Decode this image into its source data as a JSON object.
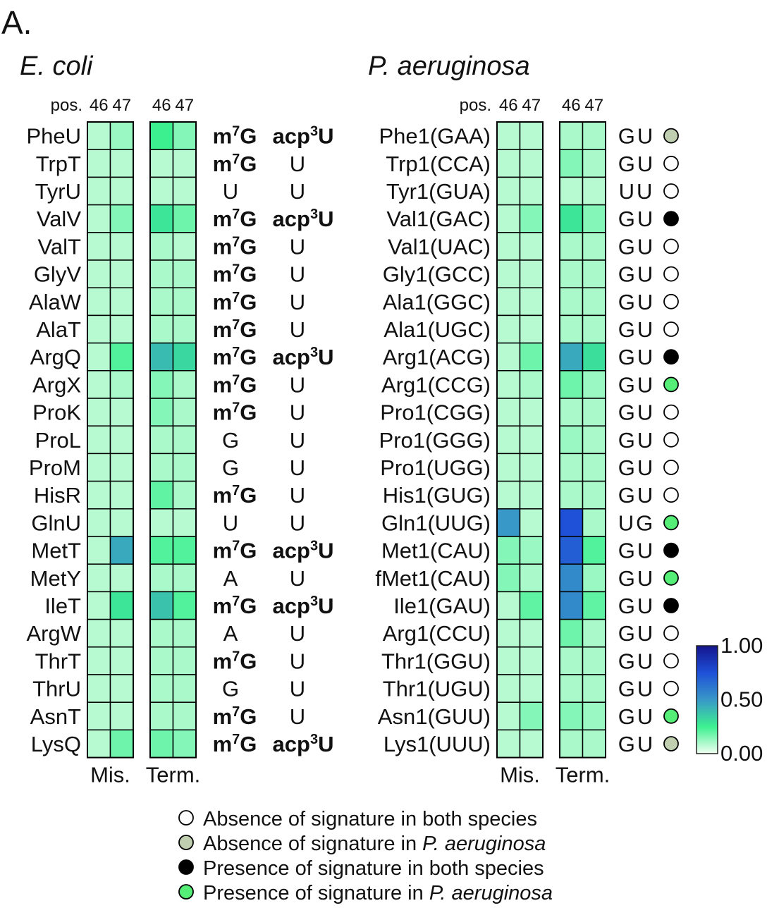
{
  "panel_label": "A.",
  "ecoli": {
    "species": "E. coli",
    "pos_label": "pos.",
    "positions": [
      "46",
      "47"
    ],
    "panel_labels": [
      "Mis.",
      "Term."
    ],
    "rows": [
      {
        "name": "PheU",
        "mis": [
          0.08,
          0.12
        ],
        "term": [
          0.25,
          0.15
        ],
        "mod46": [
          "m",
          "7",
          "G"
        ],
        "mod47": [
          "acp",
          "3",
          "U"
        ]
      },
      {
        "name": "TrpT",
        "mis": [
          0.08,
          0.08
        ],
        "term": [
          0.08,
          0.08
        ],
        "mod46": [
          "m",
          "7",
          "G"
        ],
        "mod47": [
          "",
          "",
          "U"
        ]
      },
      {
        "name": "TyrU",
        "mis": [
          0.08,
          0.08
        ],
        "term": [
          0.08,
          0.08
        ],
        "mod46": [
          "",
          "",
          "U"
        ],
        "mod47": [
          "",
          "",
          "U"
        ]
      },
      {
        "name": "ValV",
        "mis": [
          0.08,
          0.15
        ],
        "term": [
          0.28,
          0.18
        ],
        "mod46": [
          "m",
          "7",
          "G"
        ],
        "mod47": [
          "acp",
          "3",
          "U"
        ]
      },
      {
        "name": "ValT",
        "mis": [
          0.08,
          0.08
        ],
        "term": [
          0.1,
          0.08
        ],
        "mod46": [
          "m",
          "7",
          "G"
        ],
        "mod47": [
          "",
          "",
          "U"
        ]
      },
      {
        "name": "GlyV",
        "mis": [
          0.08,
          0.08
        ],
        "term": [
          0.1,
          0.1
        ],
        "mod46": [
          "m",
          "7",
          "G"
        ],
        "mod47": [
          "",
          "",
          "U"
        ]
      },
      {
        "name": "AlaW",
        "mis": [
          0.08,
          0.08
        ],
        "term": [
          0.1,
          0.1
        ],
        "mod46": [
          "m",
          "7",
          "G"
        ],
        "mod47": [
          "",
          "",
          "U"
        ]
      },
      {
        "name": "AlaT",
        "mis": [
          0.08,
          0.08
        ],
        "term": [
          0.1,
          0.1
        ],
        "mod46": [
          "m",
          "7",
          "G"
        ],
        "mod47": [
          "",
          "",
          "U"
        ]
      },
      {
        "name": "ArgQ",
        "mis": [
          0.08,
          0.22
        ],
        "term": [
          0.4,
          0.32
        ],
        "mod46": [
          "m",
          "7",
          "G"
        ],
        "mod47": [
          "acp",
          "3",
          "U"
        ]
      },
      {
        "name": "ArgX",
        "mis": [
          0.08,
          0.1
        ],
        "term": [
          0.15,
          0.1
        ],
        "mod46": [
          "m",
          "7",
          "G"
        ],
        "mod47": [
          "",
          "",
          "U"
        ]
      },
      {
        "name": "ProK",
        "mis": [
          0.08,
          0.08
        ],
        "term": [
          0.15,
          0.1
        ],
        "mod46": [
          "m",
          "7",
          "G"
        ],
        "mod47": [
          "",
          "",
          "U"
        ]
      },
      {
        "name": "ProL",
        "mis": [
          0.08,
          0.08
        ],
        "term": [
          0.1,
          0.1
        ],
        "mod46": [
          "",
          "",
          "G"
        ],
        "mod47": [
          "",
          "",
          "U"
        ]
      },
      {
        "name": "ProM",
        "mis": [
          0.08,
          0.08
        ],
        "term": [
          0.1,
          0.1
        ],
        "mod46": [
          "",
          "",
          "G"
        ],
        "mod47": [
          "",
          "",
          "U"
        ]
      },
      {
        "name": "HisR",
        "mis": [
          0.08,
          0.08
        ],
        "term": [
          0.2,
          0.1
        ],
        "mod46": [
          "m",
          "7",
          "G"
        ],
        "mod47": [
          "",
          "",
          "U"
        ]
      },
      {
        "name": "GlnU",
        "mis": [
          0.08,
          0.08
        ],
        "term": [
          0.08,
          0.08
        ],
        "mod46": [
          "",
          "",
          "U"
        ],
        "mod47": [
          "",
          "",
          "U"
        ]
      },
      {
        "name": "MetT",
        "mis": [
          0.08,
          0.45
        ],
        "term": [
          0.22,
          0.22
        ],
        "mod46": [
          "m",
          "7",
          "G"
        ],
        "mod47": [
          "acp",
          "3",
          "U"
        ]
      },
      {
        "name": "MetY",
        "mis": [
          0.08,
          0.08
        ],
        "term": [
          0.1,
          0.1
        ],
        "mod46": [
          "",
          "",
          "A"
        ],
        "mod47": [
          "",
          "",
          "U"
        ]
      },
      {
        "name": "IleT",
        "mis": [
          0.08,
          0.28
        ],
        "term": [
          0.38,
          0.22
        ],
        "mod46": [
          "m",
          "7",
          "G"
        ],
        "mod47": [
          "acp",
          "3",
          "U"
        ]
      },
      {
        "name": "ArgW",
        "mis": [
          0.08,
          0.08
        ],
        "term": [
          0.1,
          0.1
        ],
        "mod46": [
          "",
          "",
          "A"
        ],
        "mod47": [
          "",
          "",
          "U"
        ]
      },
      {
        "name": "ThrT",
        "mis": [
          0.08,
          0.08
        ],
        "term": [
          0.1,
          0.1
        ],
        "mod46": [
          "m",
          "7",
          "G"
        ],
        "mod47": [
          "",
          "",
          "U"
        ]
      },
      {
        "name": "ThrU",
        "mis": [
          0.08,
          0.08
        ],
        "term": [
          0.1,
          0.1
        ],
        "mod46": [
          "",
          "",
          "G"
        ],
        "mod47": [
          "",
          "",
          "U"
        ]
      },
      {
        "name": "AsnT",
        "mis": [
          0.08,
          0.08
        ],
        "term": [
          0.1,
          0.1
        ],
        "mod46": [
          "m",
          "7",
          "G"
        ],
        "mod47": [
          "",
          "",
          "U"
        ]
      },
      {
        "name": "LysQ",
        "mis": [
          0.08,
          0.18
        ],
        "term": [
          0.18,
          0.15
        ],
        "mod46": [
          "m",
          "7",
          "G"
        ],
        "mod47": [
          "acp",
          "3",
          "U"
        ]
      }
    ]
  },
  "paeruginosa": {
    "species": "P. aeruginosa",
    "pos_label": "pos.",
    "positions": [
      "46",
      "47"
    ],
    "panel_labels": [
      "Mis.",
      "Term."
    ],
    "rows": [
      {
        "name": "Phe1(GAA)",
        "mis": [
          0.08,
          0.08
        ],
        "term": [
          0.1,
          0.1
        ],
        "nt": "GU",
        "sig": "absent-pa"
      },
      {
        "name": "Trp1(CCA)",
        "mis": [
          0.08,
          0.08
        ],
        "term": [
          0.15,
          0.1
        ],
        "nt": "GU",
        "sig": "absent-both"
      },
      {
        "name": "Tyr1(GUA)",
        "mis": [
          0.08,
          0.08
        ],
        "term": [
          0.08,
          0.08
        ],
        "nt": "UU",
        "sig": "absent-both"
      },
      {
        "name": "Val1(GAC)",
        "mis": [
          0.08,
          0.15
        ],
        "term": [
          0.28,
          0.15
        ],
        "nt": "GU",
        "sig": "present-both"
      },
      {
        "name": "Val1(UAC)",
        "mis": [
          0.08,
          0.08
        ],
        "term": [
          0.1,
          0.1
        ],
        "nt": "GU",
        "sig": "absent-both"
      },
      {
        "name": "Gly1(GCC)",
        "mis": [
          0.08,
          0.08
        ],
        "term": [
          0.1,
          0.1
        ],
        "nt": "GU",
        "sig": "absent-both"
      },
      {
        "name": "Ala1(GGC)",
        "mis": [
          0.08,
          0.08
        ],
        "term": [
          0.1,
          0.1
        ],
        "nt": "GU",
        "sig": "absent-both"
      },
      {
        "name": "Ala1(UGC)",
        "mis": [
          0.08,
          0.08
        ],
        "term": [
          0.1,
          0.1
        ],
        "nt": "GU",
        "sig": "absent-both"
      },
      {
        "name": "Arg1(ACG)",
        "mis": [
          0.08,
          0.18
        ],
        "term": [
          0.45,
          0.3
        ],
        "nt": "GU",
        "sig": "present-both"
      },
      {
        "name": "Arg1(CCG)",
        "mis": [
          0.08,
          0.1
        ],
        "term": [
          0.18,
          0.12
        ],
        "nt": "GU",
        "sig": "present-pa"
      },
      {
        "name": "Pro1(CGG)",
        "mis": [
          0.08,
          0.08
        ],
        "term": [
          0.1,
          0.1
        ],
        "nt": "GU",
        "sig": "absent-both"
      },
      {
        "name": "Pro1(GGG)",
        "mis": [
          0.08,
          0.08
        ],
        "term": [
          0.12,
          0.1
        ],
        "nt": "GU",
        "sig": "absent-both"
      },
      {
        "name": "Pro1(UGG)",
        "mis": [
          0.08,
          0.08
        ],
        "term": [
          0.1,
          0.1
        ],
        "nt": "GU",
        "sig": "absent-both"
      },
      {
        "name": "His1(GUG)",
        "mis": [
          0.08,
          0.08
        ],
        "term": [
          0.1,
          0.1
        ],
        "nt": "GU",
        "sig": "absent-both"
      },
      {
        "name": "Gln1(UUG)",
        "mis": [
          0.5,
          0.08
        ],
        "term": [
          0.75,
          0.1
        ],
        "nt": "UG",
        "sig": "present-pa"
      },
      {
        "name": "Met1(CAU)",
        "mis": [
          0.15,
          0.12
        ],
        "term": [
          0.7,
          0.22
        ],
        "nt": "GU",
        "sig": "present-both"
      },
      {
        "name": "fMet1(CAU)",
        "mis": [
          0.15,
          0.1
        ],
        "term": [
          0.55,
          0.12
        ],
        "nt": "GU",
        "sig": "present-pa"
      },
      {
        "name": "Ile1(GAU)",
        "mis": [
          0.08,
          0.2
        ],
        "term": [
          0.55,
          0.2
        ],
        "nt": "GU",
        "sig": "present-both"
      },
      {
        "name": "Arg1(CCU)",
        "mis": [
          0.08,
          0.08
        ],
        "term": [
          0.18,
          0.1
        ],
        "nt": "GU",
        "sig": "absent-both"
      },
      {
        "name": "Thr1(GGU)",
        "mis": [
          0.08,
          0.08
        ],
        "term": [
          0.1,
          0.1
        ],
        "nt": "GU",
        "sig": "absent-both"
      },
      {
        "name": "Thr1(UGU)",
        "mis": [
          0.08,
          0.08
        ],
        "term": [
          0.1,
          0.1
        ],
        "nt": "GU",
        "sig": "absent-both"
      },
      {
        "name": "Asn1(GUU)",
        "mis": [
          0.08,
          0.15
        ],
        "term": [
          0.15,
          0.12
        ],
        "nt": "GU",
        "sig": "present-pa"
      },
      {
        "name": "Lys1(UUU)",
        "mis": [
          0.08,
          0.08
        ],
        "term": [
          0.1,
          0.1
        ],
        "nt": "GU",
        "sig": "absent-pa"
      }
    ]
  },
  "colorbar": {
    "labels": [
      "1.00",
      "0.50",
      "0.00"
    ],
    "stops": [
      "#f1fff1",
      "#3cf090",
      "#3898c8",
      "#1e50d8",
      "#14148c"
    ]
  },
  "legend": [
    {
      "key": "absent-both",
      "color": "#ffffff",
      "parts": [
        "Absence of signature in both species"
      ]
    },
    {
      "key": "absent-pa",
      "color": "#c0cfb0",
      "parts": [
        "Absence of signature in ",
        "P. aeruginosa"
      ]
    },
    {
      "key": "present-both",
      "color": "#000000",
      "parts": [
        "Presence of signature in both species"
      ]
    },
    {
      "key": "present-pa",
      "color": "#55ee77",
      "parts": [
        "Presence of signature in ",
        "P. aeruginosa"
      ]
    }
  ],
  "chart_data": {
    "type": "heatmap",
    "title": "",
    "color_range": [
      0,
      1
    ],
    "color_ticks": [
      "0.00",
      "0.50",
      "1.00"
    ],
    "x": [
      "Mis. 46",
      "Mis. 47",
      "Term. 46",
      "Term. 47"
    ],
    "series": [
      {
        "name": "E. coli",
        "rows": "ecoli.rows"
      },
      {
        "name": "P. aeruginosa",
        "rows": "paeruginosa.rows"
      }
    ]
  }
}
